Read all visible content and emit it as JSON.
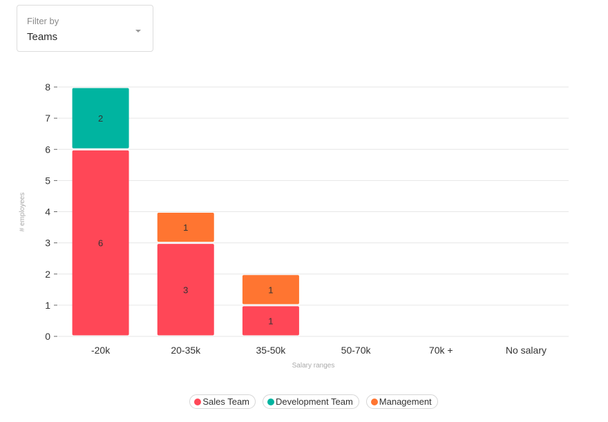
{
  "filter": {
    "label": "Filter by",
    "value": "Teams"
  },
  "chart_data": {
    "type": "bar",
    "stacked": true,
    "categories": [
      "-20k",
      "20-35k",
      "35-50k",
      "50-70k",
      "70k +",
      "No salary"
    ],
    "series": [
      {
        "name": "Sales Team",
        "color": "#ff4757",
        "values": [
          6,
          3,
          1,
          0,
          0,
          0
        ]
      },
      {
        "name": "Development Team",
        "color": "#00b4a0",
        "values": [
          2,
          0,
          0,
          0,
          0,
          0
        ]
      },
      {
        "name": "Management",
        "color": "#ff7531",
        "values": [
          0,
          1,
          1,
          0,
          0,
          0
        ]
      }
    ],
    "series_order_bottom_to_top": [
      "Sales Team",
      "Development Team",
      "Management"
    ],
    "xlabel": "Salary ranges",
    "ylabel": "# employees",
    "ylim": [
      0,
      8
    ],
    "yticks": [
      0,
      1,
      2,
      3,
      4,
      5,
      6,
      7,
      8
    ],
    "grid": true,
    "legend_position": "bottom"
  }
}
